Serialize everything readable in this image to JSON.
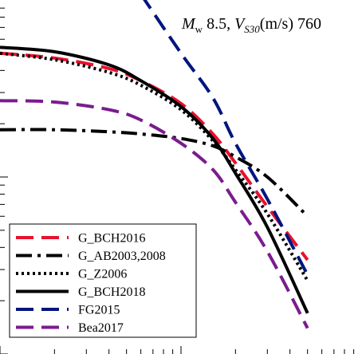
{
  "chart_data": {
    "type": "line",
    "title_parts": {
      "m": "M",
      "m_sub": "w",
      "magnitude": " 8.5, ",
      "v": "V",
      "v_sub": "S30",
      "vs30": "(m/s) 760"
    },
    "x_scale": "log",
    "y_scale": "log",
    "xlim": [
      10,
      1000
    ],
    "ylim": [
      0.1,
      10
    ],
    "legend_position": "bottom-left",
    "series": [
      {
        "name": "G_BCH2016",
        "color": "#e8112d",
        "dash": "dashed",
        "x": [
          10,
          20,
          40,
          60,
          100,
          150,
          200,
          300,
          500
        ],
        "y": [
          5.0,
          4.7,
          4.1,
          3.5,
          2.6,
          1.75,
          1.2,
          0.68,
          0.34
        ]
      },
      {
        "name": "G_AB2003,2008",
        "color": "#000000",
        "dash": "dashdot",
        "x": [
          10,
          20,
          40,
          60,
          100,
          150,
          200,
          300,
          500
        ],
        "y": [
          1.85,
          1.85,
          1.8,
          1.75,
          1.65,
          1.5,
          1.3,
          1.0,
          0.6
        ]
      },
      {
        "name": "G_Z2006",
        "color": "#000000",
        "dash": "dotted",
        "x": [
          10,
          20,
          40,
          60,
          100,
          150,
          200,
          300,
          500
        ],
        "y": [
          5.0,
          4.6,
          3.9,
          3.3,
          2.4,
          1.6,
          1.1,
          0.62,
          0.26
        ]
      },
      {
        "name": "G_BCH2018",
        "color": "#000000",
        "dash": "solid",
        "x": [
          10,
          20,
          40,
          60,
          100,
          150,
          200,
          300,
          500
        ],
        "y": [
          5.4,
          5.1,
          4.3,
          3.5,
          2.5,
          1.65,
          1.05,
          0.52,
          0.17
        ]
      },
      {
        "name": "FG2015",
        "color": "#00157e",
        "dash": "dashed",
        "x": [
          60,
          100,
          150,
          200,
          300,
          500
        ],
        "y": [
          10.8,
          5.0,
          2.8,
          1.55,
          0.75,
          0.28
        ]
      },
      {
        "name": "Bea2017",
        "color": "#7b1b8f",
        "dash": "dashed",
        "x": [
          10,
          20,
          40,
          60,
          100,
          150,
          200,
          300,
          500
        ],
        "y": [
          2.7,
          2.65,
          2.4,
          2.1,
          1.55,
          1.1,
          0.72,
          0.38,
          0.14
        ]
      }
    ]
  }
}
